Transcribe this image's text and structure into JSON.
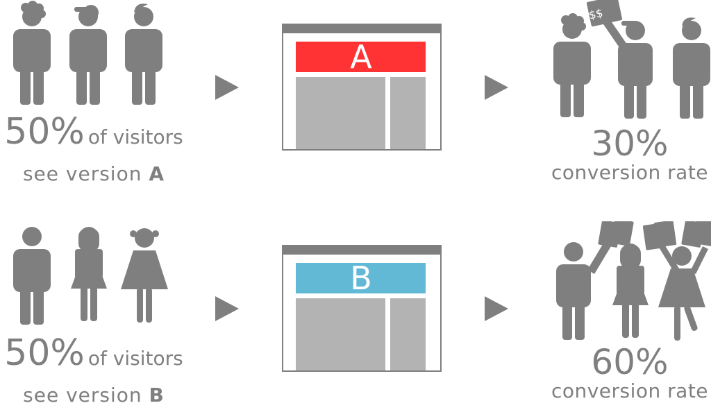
{
  "rows": [
    {
      "visitors_pct": "50%",
      "visitors_suffix": "of visitors",
      "see_version": "see version",
      "version": "A",
      "page_label": "A",
      "header_color": "#ff3333",
      "result_pct": "30%",
      "result_label": "conversion rate"
    },
    {
      "visitors_pct": "50%",
      "visitors_suffix": "of visitors",
      "see_version": "see version",
      "version": "B",
      "page_label": "B",
      "header_color": "#62b9d6",
      "result_pct": "60%",
      "result_label": "conversion rate"
    }
  ],
  "money_sign": "$$",
  "colors": {
    "figure": "#7f7f7f",
    "content_block": "#b3b3b3",
    "frame": "#7f7f7f"
  }
}
